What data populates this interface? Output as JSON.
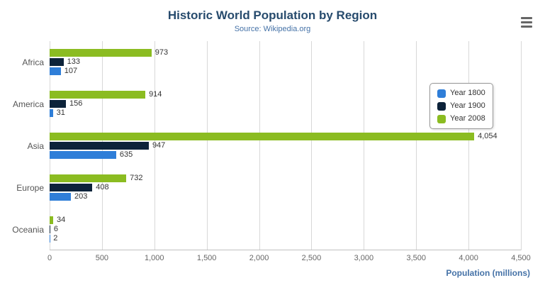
{
  "title": "Historic World Population by Region",
  "subtitle": "Source: Wikipedia.org",
  "colors": {
    "title_color": "#274b6d",
    "subtitle_color": "#4572a7",
    "axis_title_color": "#4572a7",
    "gridline_color": "#d8d8d8",
    "year_1800": "#2f7ed8",
    "year_1900": "#0d233a",
    "year_2008": "#8bbc21"
  },
  "legend": {
    "items": [
      {
        "label": "Year 1800",
        "color": "#2f7ed8"
      },
      {
        "label": "Year 1900",
        "color": "#0d233a"
      },
      {
        "label": "Year 2008",
        "color": "#8bbc21"
      }
    ]
  },
  "x_axis_title": "Population (millions)",
  "chart_data": {
    "type": "bar",
    "orientation": "horizontal",
    "title": "Historic World Population by Region",
    "subtitle": "Source: Wikipedia.org",
    "categories": [
      "Africa",
      "America",
      "Asia",
      "Europe",
      "Oceania"
    ],
    "series": [
      {
        "name": "Year 1800",
        "color": "#2f7ed8",
        "values": [
          107,
          31,
          635,
          203,
          2
        ]
      },
      {
        "name": "Year 1900",
        "color": "#0d233a",
        "values": [
          133,
          156,
          947,
          408,
          6
        ]
      },
      {
        "name": "Year 2008",
        "color": "#8bbc21",
        "values": [
          973,
          914,
          4054,
          732,
          34
        ]
      }
    ],
    "bar_order_top_to_bottom": [
      "Year 2008",
      "Year 1900",
      "Year 1800"
    ],
    "xlabel": "Population (millions)",
    "ylabel": "",
    "xlim": [
      0,
      4500
    ],
    "xticks": [
      0,
      500,
      1000,
      1500,
      2000,
      2500,
      3000,
      3500,
      4000,
      4500
    ],
    "grid": true,
    "legend_position": "right"
  }
}
